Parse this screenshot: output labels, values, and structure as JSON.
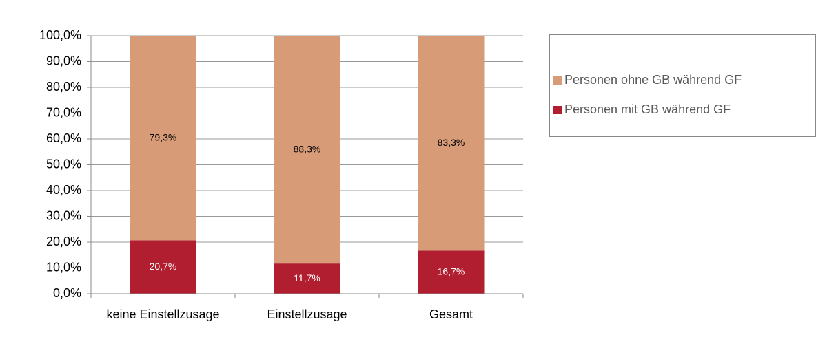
{
  "chart_data": {
    "type": "stacked_bar",
    "categories": [
      "keine Einstellzusage",
      "Einstellzusage",
      "Gesamt"
    ],
    "series": [
      {
        "name": "Personen mit GB während GF",
        "color": "#b11e2f",
        "values": [
          20.7,
          11.7,
          16.7
        ],
        "value_labels": [
          "20,7%",
          "11,7%",
          "16,7%"
        ]
      },
      {
        "name": "Personen ohne GB während GF",
        "color": "#d89b77",
        "values": [
          79.3,
          88.3,
          83.3
        ],
        "value_labels": [
          "79,3%",
          "88,3%",
          "83,3%"
        ]
      }
    ],
    "ylim": [
      0,
      100
    ],
    "yticks": [
      {
        "value": 0,
        "label": "0,0%"
      },
      {
        "value": 10,
        "label": "10,0%"
      },
      {
        "value": 20,
        "label": "20,0%"
      },
      {
        "value": 30,
        "label": "30,0%"
      },
      {
        "value": 40,
        "label": "40,0%"
      },
      {
        "value": 50,
        "label": "50,0%"
      },
      {
        "value": 60,
        "label": "60,0%"
      },
      {
        "value": 70,
        "label": "70,0%"
      },
      {
        "value": 80,
        "label": "80,0%"
      },
      {
        "value": 90,
        "label": "90,0%"
      },
      {
        "value": 100,
        "label": "100,0%"
      }
    ],
    "grid": true,
    "legend": "right"
  }
}
